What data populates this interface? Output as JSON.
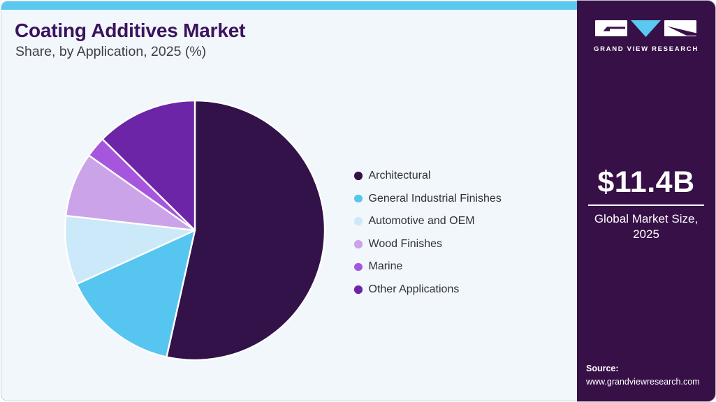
{
  "header": {
    "title": "Coating Additives Market",
    "subtitle": "Share, by Application, 2025 (%)"
  },
  "sidebar": {
    "brand": "GRAND VIEW RESEARCH",
    "market_size": "$11.4B",
    "caption_line1": "Global Market Size,",
    "caption_line2": "2025",
    "source_label": "Source:",
    "source_url": "www.grandviewresearch.com"
  },
  "chart_data": {
    "type": "pie",
    "title": "Coating Additives Market Share, by Application, 2025 (%)",
    "labels": [
      "Architectural",
      "General Industrial Finishes",
      "Automotive and OEM",
      "Wood Finishes",
      "Marine",
      "Other Applications"
    ],
    "values": [
      53.5,
      14.7,
      8.6,
      8.0,
      2.6,
      12.6
    ],
    "colors": [
      "#331149",
      "#56c5f0",
      "#cbe9f9",
      "#cba3e9",
      "#a656dc",
      "#6c25a6"
    ],
    "start_angle_deg": 0,
    "direction": "clockwise",
    "slice_separator_color": "#ffffff",
    "legend_position": "right",
    "units": "%"
  },
  "theme": {
    "accent_bar": "#5bc8f0",
    "card_bg": "#f1f7fa",
    "sidebar_bg": "#371048",
    "title_color": "#3c135e",
    "logo_triangle": "#5bc8f0"
  }
}
